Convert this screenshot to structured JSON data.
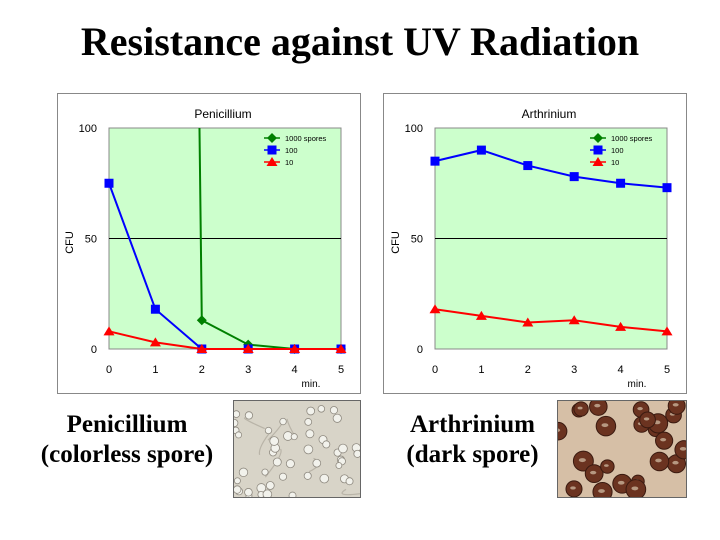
{
  "title": "Resistance against UV Radiation",
  "chart_data": [
    {
      "type": "line",
      "title": "Penicillium",
      "xlabel": "min.",
      "ylabel": "CFU",
      "x": [
        0,
        1,
        2,
        3,
        4,
        5
      ],
      "xlim": [
        0,
        5
      ],
      "ylim": [
        0,
        100
      ],
      "yticks": [
        "0",
        "50",
        "100"
      ],
      "xticks": [
        "0",
        "1",
        "2",
        "3",
        "4",
        "5"
      ],
      "grid": "horizontal",
      "plot_background": "#ccffcc",
      "legend_position": "top-right",
      "series": [
        {
          "name": "1000 spores",
          "color": "#008000",
          "marker": "diamond",
          "values": [
            null,
            null,
            13,
            2,
            0,
            0
          ],
          "offscale_start": [
            1.95,
            100
          ]
        },
        {
          "name": "100",
          "color": "#0000ff",
          "marker": "square",
          "values": [
            75,
            18,
            0,
            0,
            0,
            0
          ]
        },
        {
          "name": "10",
          "color": "#ff0000",
          "marker": "triangle",
          "values": [
            8,
            3,
            0,
            0,
            0,
            0
          ]
        }
      ]
    },
    {
      "type": "line",
      "title": "Arthrinium",
      "xlabel": "min.",
      "ylabel": "CFU",
      "x": [
        0,
        1,
        2,
        3,
        4,
        5
      ],
      "xlim": [
        0,
        5
      ],
      "ylim": [
        0,
        100
      ],
      "yticks": [
        "0",
        "50",
        "100"
      ],
      "xticks": [
        "0",
        "1",
        "2",
        "3",
        "4",
        "5"
      ],
      "grid": "horizontal",
      "plot_background": "#ccffcc",
      "legend_position": "top-right",
      "series": [
        {
          "name": "1000 spores",
          "color": "#008000",
          "marker": "diamond",
          "values": [
            null,
            null,
            null,
            null,
            null,
            null
          ]
        },
        {
          "name": "100",
          "color": "#0000ff",
          "marker": "square",
          "values": [
            85,
            90,
            83,
            78,
            75,
            73
          ]
        },
        {
          "name": "10",
          "color": "#ff0000",
          "marker": "triangle",
          "values": [
            18,
            15,
            12,
            13,
            10,
            8
          ]
        }
      ]
    }
  ],
  "captions": [
    {
      "line1": "Penicillium",
      "line2": "(colorless spore)"
    },
    {
      "line1": "Arthrinium",
      "line2": "(dark spore)"
    }
  ],
  "photos": [
    {
      "icon": "colorless-spores-micrograph",
      "background": "#d8d4c8",
      "spore_color": "#f2f2ec"
    },
    {
      "icon": "dark-spores-micrograph",
      "background": "#d6bfa6",
      "spore_color": "#6b3320"
    }
  ]
}
